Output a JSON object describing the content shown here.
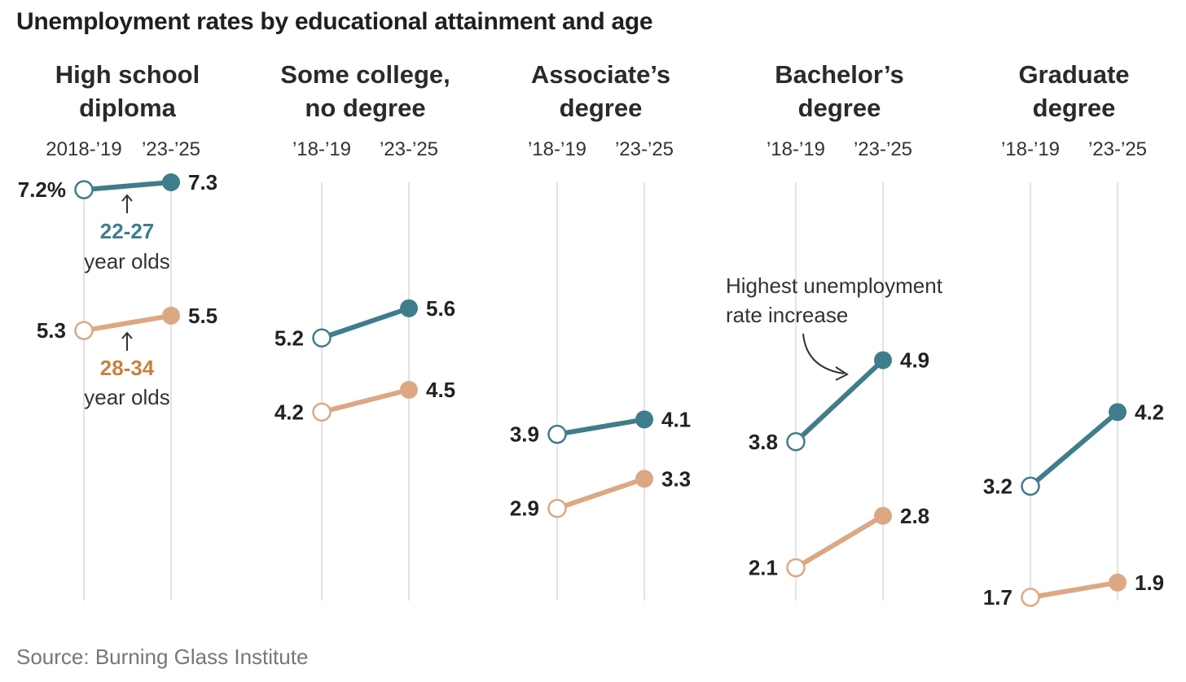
{
  "title": "Unemployment rates by educational attainment and age",
  "source": "Source: Burning Glass Institute",
  "colors": {
    "young": "#3f7d8c",
    "older": "#dca884",
    "older_text": "#c7823f",
    "grid": "#e2e2e2"
  },
  "annotations": {
    "young_group": "22-27",
    "older_group": "28-34",
    "year_olds": "year olds",
    "highlight_line1": "Highest unemployment",
    "highlight_line2": "rate increase"
  },
  "chart_data": {
    "type": "line",
    "title": "Unemployment rates by educational attainment and age",
    "subplots": [
      "High school diploma",
      "Some college, no degree",
      "Associate’s degree",
      "Bachelor’s degree",
      "Graduate degree"
    ],
    "series": [
      {
        "name": "22-27 year olds",
        "values": [
          [
            7.2,
            7.3
          ],
          [
            5.2,
            5.6
          ],
          [
            3.9,
            4.1
          ],
          [
            3.8,
            4.9
          ],
          [
            3.2,
            4.2
          ]
        ]
      },
      {
        "name": "28-34 year olds",
        "values": [
          [
            5.3,
            5.5
          ],
          [
            4.2,
            4.5
          ],
          [
            2.9,
            3.3
          ],
          [
            2.1,
            2.8
          ],
          [
            1.7,
            1.9
          ]
        ]
      }
    ],
    "panels": [
      {
        "title_lines": [
          "High school",
          "diploma"
        ],
        "period_start": "2018-’19",
        "period_end": "’23-’25",
        "young": {
          "start": 7.2,
          "end": 7.3,
          "start_label": "7.2%",
          "end_label": "7.3"
        },
        "older": {
          "start": 5.3,
          "end": 5.5,
          "start_label": "5.3",
          "end_label": "5.5"
        }
      },
      {
        "title_lines": [
          "Some college,",
          "no degree"
        ],
        "period_start": "’18-’19",
        "period_end": "’23-’25",
        "young": {
          "start": 5.2,
          "end": 5.6,
          "start_label": "5.2",
          "end_label": "5.6"
        },
        "older": {
          "start": 4.2,
          "end": 4.5,
          "start_label": "4.2",
          "end_label": "4.5"
        }
      },
      {
        "title_lines": [
          "Associate’s",
          "degree"
        ],
        "period_start": "’18-’19",
        "period_end": "’23-’25",
        "young": {
          "start": 3.9,
          "end": 4.1,
          "start_label": "3.9",
          "end_label": "4.1"
        },
        "older": {
          "start": 2.9,
          "end": 3.3,
          "start_label": "2.9",
          "end_label": "3.3"
        }
      },
      {
        "title_lines": [
          "Bachelor’s",
          "degree"
        ],
        "period_start": "’18-’19",
        "period_end": "’23-’25",
        "young": {
          "start": 3.8,
          "end": 4.9,
          "start_label": "3.8",
          "end_label": "4.9"
        },
        "older": {
          "start": 2.1,
          "end": 2.8,
          "start_label": "2.1",
          "end_label": "2.8"
        }
      },
      {
        "title_lines": [
          "Graduate",
          "degree"
        ],
        "period_start": "’18-’19",
        "period_end": "’23-’25",
        "young": {
          "start": 3.2,
          "end": 4.2,
          "start_label": "3.2",
          "end_label": "4.2"
        },
        "older": {
          "start": 1.7,
          "end": 1.9,
          "start_label": "1.7",
          "end_label": "1.9"
        }
      }
    ],
    "ylim": [
      1.7,
      7.3
    ],
    "grid": true
  }
}
